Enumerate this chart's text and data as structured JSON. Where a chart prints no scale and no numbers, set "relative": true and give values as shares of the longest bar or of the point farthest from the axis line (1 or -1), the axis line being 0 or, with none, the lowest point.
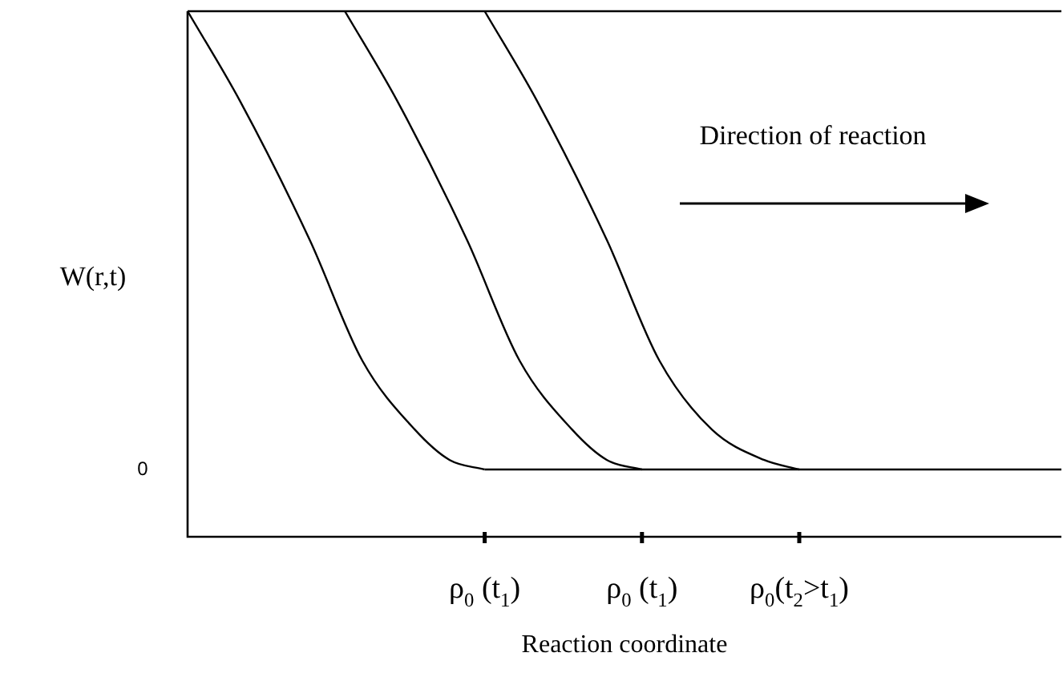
{
  "chart_data": {
    "type": "line",
    "relative": true,
    "xlabel": "Reaction coordinate",
    "ylabel": "W(r,t)",
    "categories": [
      null,
      null,
      null,
      null,
      null,
      null,
      null,
      null,
      null,
      null,
      null,
      null,
      null,
      null,
      null,
      null,
      null,
      "ρ$_{0}$ (t$_{1}$)",
      null,
      null,
      null,
      null,
      null,
      null,
      null,
      null,
      "ρ$_{0}$ (t$_{1}$)",
      null,
      null,
      null,
      null,
      null,
      null,
      null,
      null,
      "ρ$_{0}$(t$_{2}$>t$_{1}$)",
      null,
      null,
      null,
      null,
      null,
      null,
      null,
      null,
      null,
      null,
      null,
      null,
      null,
      null,
      null
    ],
    "annotations": [
      "Direction of reaction",
      "0"
    ],
    "legend": false,
    "marker": "none",
    "line_style": "solid",
    "series": [
      {
        "color": "#000000",
        "values": [
          1,
          null,
          null,
          0.829,
          null,
          null,
          null,
          0.564,
          null,
          null,
          0.335,
          null,
          null,
          0.204,
          null,
          0.146,
          null,
          0.128,
          null,
          null,
          null,
          null,
          null,
          null,
          null,
          null,
          null,
          null,
          null,
          null,
          null,
          null,
          null,
          null,
          null,
          null,
          null,
          null,
          null,
          null,
          null,
          null,
          null,
          null,
          null,
          null,
          null,
          null,
          null,
          null,
          null
        ]
      },
      {
        "color": "#000000",
        "values": [
          null,
          null,
          null,
          null,
          null,
          null,
          null,
          null,
          null,
          1,
          null,
          null,
          0.829,
          null,
          null,
          null,
          0.564,
          null,
          null,
          0.335,
          null,
          null,
          0.204,
          null,
          0.146,
          null,
          0.128,
          null,
          null,
          null,
          null,
          null,
          null,
          null,
          null,
          null,
          null,
          null,
          null,
          null,
          null,
          null,
          null,
          null,
          null,
          null,
          null,
          null,
          null,
          null,
          null
        ]
      },
      {
        "color": "#000000",
        "values": [
          null,
          null,
          null,
          null,
          null,
          null,
          null,
          null,
          null,
          null,
          null,
          null,
          null,
          null,
          null,
          null,
          null,
          1,
          null,
          null,
          0.829,
          null,
          null,
          null,
          0.564,
          null,
          null,
          0.335,
          null,
          null,
          0.204,
          null,
          null,
          0.146,
          null,
          0.128,
          null,
          null,
          null,
          null,
          null,
          null,
          null,
          null,
          null,
          null,
          null,
          null,
          null,
          null,
          null
        ]
      },
      {
        "color": "#000000",
        "values": [
          null,
          null,
          null,
          null,
          null,
          null,
          null,
          null,
          null,
          null,
          null,
          null,
          null,
          null,
          null,
          null,
          null,
          0.128,
          null,
          null,
          null,
          null,
          null,
          null,
          null,
          null,
          null,
          null,
          null,
          null,
          null,
          null,
          null,
          null,
          null,
          null,
          null,
          null,
          null,
          null,
          null,
          null,
          null,
          null,
          null,
          null,
          null,
          null,
          null,
          null,
          0.128
        ]
      }
    ]
  }
}
